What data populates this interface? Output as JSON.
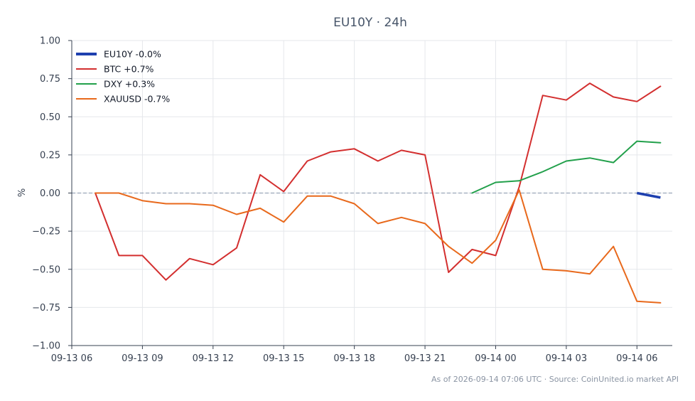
{
  "chart_data": {
    "type": "line",
    "title": "EU10Y · 24h",
    "ylabel": "%",
    "ylim": [
      -1.0,
      1.0
    ],
    "xlim": [
      "2026-09-13 06:00",
      "2026-09-14 07:30"
    ],
    "grid": true,
    "legend_position": "top-left",
    "zero_line": true,
    "y_ticks": [
      "1.00",
      "0.75",
      "0.50",
      "0.25",
      "0.00",
      "−0.25",
      "−0.50",
      "−0.75",
      "−1.00"
    ],
    "x_ticks": [
      "09-13 06",
      "09-13 09",
      "09-13 12",
      "09-13 15",
      "09-13 18",
      "09-13 21",
      "09-14 00",
      "09-14 03",
      "09-14 06"
    ],
    "footer": "As of 2026-09-14 07:06 UTC · Source: CoinUnited.io market API",
    "series": [
      {
        "name": "EU10Y -0.0%",
        "color": "#1e40af",
        "x": [
          "2026-09-14 06:00",
          "2026-09-14 07:00"
        ],
        "values": [
          0.0,
          -0.03
        ]
      },
      {
        "name": "BTC +0.7%",
        "color": "#d32f2f",
        "x": [
          "2026-09-13 07:00",
          "2026-09-13 08:00",
          "2026-09-13 09:00",
          "2026-09-13 10:00",
          "2026-09-13 11:00",
          "2026-09-13 12:00",
          "2026-09-13 13:00",
          "2026-09-13 14:00",
          "2026-09-13 15:00",
          "2026-09-13 16:00",
          "2026-09-13 17:00",
          "2026-09-13 18:00",
          "2026-09-13 19:00",
          "2026-09-13 20:00",
          "2026-09-13 21:00",
          "2026-09-13 22:00",
          "2026-09-13 23:00",
          "2026-09-14 00:00",
          "2026-09-14 01:00",
          "2026-09-14 02:00",
          "2026-09-14 03:00",
          "2026-09-14 04:00",
          "2026-09-14 05:00",
          "2026-09-14 06:00",
          "2026-09-14 07:00"
        ],
        "values": [
          0.0,
          -0.41,
          -0.41,
          -0.57,
          -0.43,
          -0.47,
          -0.36,
          0.12,
          0.01,
          0.21,
          0.27,
          0.29,
          0.21,
          0.28,
          0.25,
          -0.52,
          -0.37,
          -0.41,
          0.04,
          0.64,
          0.61,
          0.72,
          0.63,
          0.6,
          0.7
        ]
      },
      {
        "name": "DXY +0.3%",
        "color": "#22a04b",
        "x": [
          "2026-09-13 23:00",
          "2026-09-14 00:00",
          "2026-09-14 01:00",
          "2026-09-14 02:00",
          "2026-09-14 03:00",
          "2026-09-14 04:00",
          "2026-09-14 05:00",
          "2026-09-14 06:00",
          "2026-09-14 07:00"
        ],
        "values": [
          0.0,
          0.07,
          0.08,
          0.14,
          0.21,
          0.23,
          0.2,
          0.34,
          0.33
        ]
      },
      {
        "name": "XAUUSD -0.7%",
        "color": "#e8691c",
        "x": [
          "2026-09-13 07:00",
          "2026-09-13 08:00",
          "2026-09-13 09:00",
          "2026-09-13 10:00",
          "2026-09-13 11:00",
          "2026-09-13 12:00",
          "2026-09-13 13:00",
          "2026-09-13 14:00",
          "2026-09-13 15:00",
          "2026-09-13 16:00",
          "2026-09-13 17:00",
          "2026-09-13 18:00",
          "2026-09-13 19:00",
          "2026-09-13 20:00",
          "2026-09-13 21:00",
          "2026-09-13 22:00",
          "2026-09-13 23:00",
          "2026-09-14 00:00",
          "2026-09-14 01:00",
          "2026-09-14 02:00",
          "2026-09-14 03:00",
          "2026-09-14 04:00",
          "2026-09-14 05:00",
          "2026-09-14 06:00",
          "2026-09-14 07:00"
        ],
        "values": [
          0.0,
          0.0,
          -0.05,
          -0.07,
          -0.07,
          -0.08,
          -0.14,
          -0.1,
          -0.19,
          -0.02,
          -0.02,
          -0.07,
          -0.2,
          -0.16,
          -0.2,
          -0.35,
          -0.46,
          -0.31,
          0.02,
          -0.5,
          -0.51,
          -0.53,
          -0.35,
          -0.71,
          -0.72
        ]
      }
    ]
  }
}
